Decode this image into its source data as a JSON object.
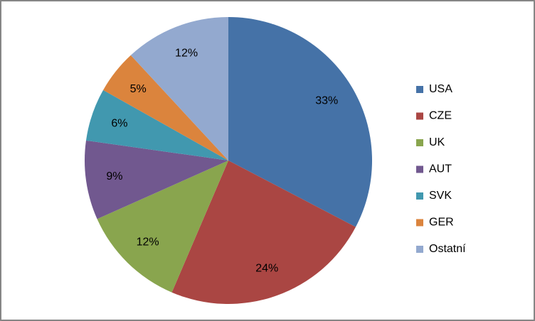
{
  "chart_data": {
    "type": "pie",
    "categories": [
      "USA",
      "CZE",
      "UK",
      "AUT",
      "SVK",
      "GER",
      "Ostatní"
    ],
    "values": [
      33,
      24,
      12,
      9,
      6,
      5,
      12
    ],
    "value_labels": [
      "33%",
      "24%",
      "12%",
      "9%",
      "6%",
      "5%",
      "12%"
    ],
    "colors": [
      "#4572a7",
      "#aa4643",
      "#89a54e",
      "#71588f",
      "#4198af",
      "#db843d",
      "#93a9cf"
    ],
    "legend": "right"
  }
}
